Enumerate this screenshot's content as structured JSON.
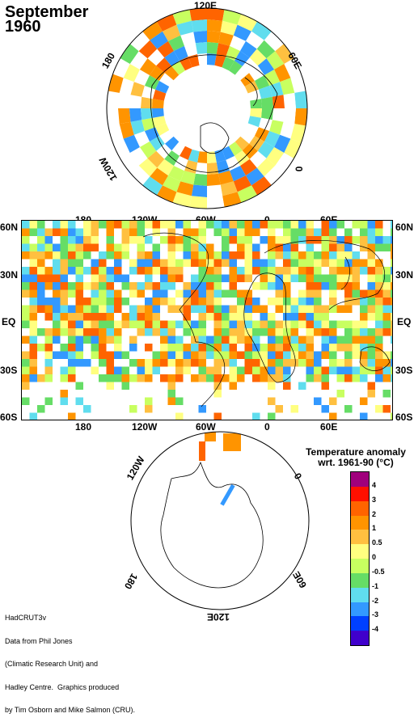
{
  "title": {
    "line1": "September",
    "line2": "1960"
  },
  "north_polar": {
    "labels": {
      "top": "120E",
      "left": "180",
      "upper_right": "60E",
      "lower_left": "120W",
      "right": "0"
    }
  },
  "world_map": {
    "lat_labels": [
      "60N",
      "30N",
      "EQ",
      "30S",
      "60S"
    ],
    "lon_labels": [
      "180",
      "120W",
      "60W",
      "0",
      "60E"
    ]
  },
  "south_polar": {
    "labels": {
      "upper_left": "120W",
      "upper_right": "0",
      "lower_left": "180",
      "lower_right": "60E",
      "bottom": "120E"
    }
  },
  "legend": {
    "title_line1": "Temperature anomaly",
    "title_line2": "wrt. 1961-90  (°C)",
    "ticks": [
      "4",
      "3",
      "2",
      "1",
      "0.5",
      "0",
      "-0.5",
      "-1",
      "-2",
      "-3",
      "-4"
    ],
    "colors": [
      "#a0007c",
      "#ff1000",
      "#ff6400",
      "#ff9400",
      "#ffc040",
      "#ffff80",
      "#c8ff60",
      "#66dd66",
      "#60ddee",
      "#3399ff",
      "#0040ff",
      "#4000cc"
    ]
  },
  "credits": {
    "lines": [
      "HadCRUT3v",
      "Data from Phil Jones",
      "(Climatic Research Unit) and",
      "Hadley Centre.  Graphics produced",
      "by Tim Osborn and Mike Salmon (CRU)."
    ]
  }
}
